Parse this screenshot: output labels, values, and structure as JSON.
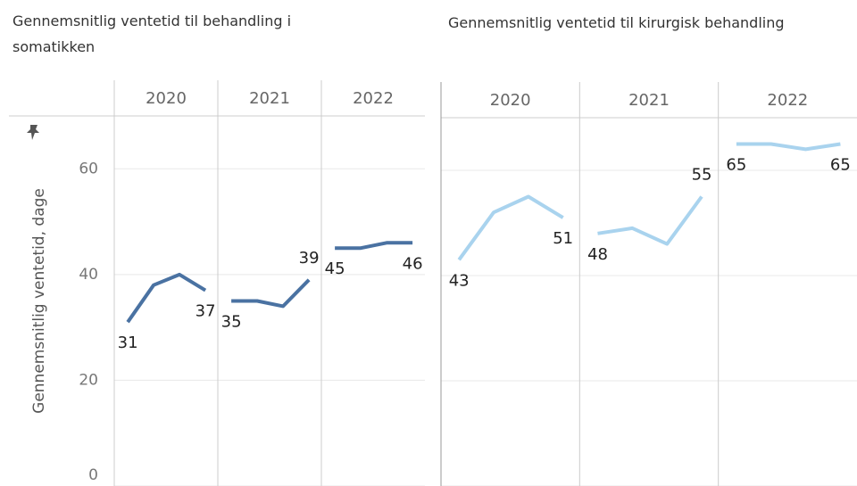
{
  "chart_data": [
    {
      "type": "line",
      "title": "Gennemsnitlig ventetid til behandling i somatikken",
      "y_label": "Gennemsnitlig ventetid, dage",
      "ylim": [
        0,
        70
      ],
      "yticks": [
        0,
        20,
        40,
        60
      ],
      "grid": true,
      "color": "#4a72a2",
      "series": [
        {
          "name": "2020",
          "values": [
            31,
            38,
            40,
            37
          ]
        },
        {
          "name": "2021",
          "values": [
            35,
            35,
            34,
            39
          ]
        },
        {
          "name": "2022",
          "values": [
            45,
            45,
            46,
            46
          ]
        }
      ]
    },
    {
      "type": "line",
      "title": "Gennemsnitlig ventetid til kirurgisk behandling",
      "ylim": [
        0,
        70
      ],
      "yticks": [
        0,
        20,
        40,
        60
      ],
      "grid": true,
      "color": "#a9d3ee",
      "series": [
        {
          "name": "2020",
          "values": [
            43,
            52,
            55,
            51
          ]
        },
        {
          "name": "2021",
          "values": [
            48,
            49,
            46,
            55
          ]
        },
        {
          "name": "2022",
          "values": [
            65,
            65,
            64,
            65
          ]
        }
      ]
    }
  ]
}
